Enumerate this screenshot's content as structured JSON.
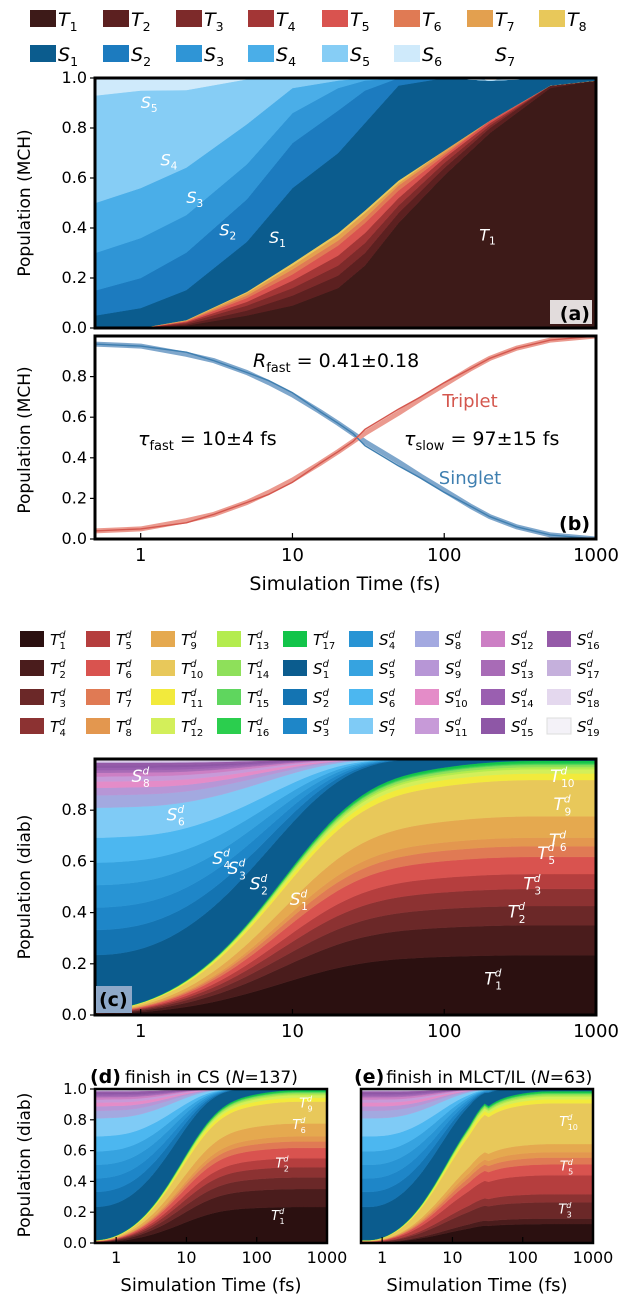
{
  "legend_top": {
    "triplets": [
      {
        "label": "T1",
        "base": "T",
        "sub": "1",
        "color": "#3d1a18"
      },
      {
        "label": "T2",
        "base": "T",
        "sub": "2",
        "color": "#5c2020"
      },
      {
        "label": "T3",
        "base": "T",
        "sub": "3",
        "color": "#7d2a2a"
      },
      {
        "label": "T4",
        "base": "T",
        "sub": "4",
        "color": "#a33636"
      },
      {
        "label": "T5",
        "base": "T",
        "sub": "5",
        "color": "#d9534f"
      },
      {
        "label": "T6",
        "base": "T",
        "sub": "6",
        "color": "#e07a54"
      },
      {
        "label": "T7",
        "base": "T",
        "sub": "7",
        "color": "#e3a04f"
      },
      {
        "label": "T8",
        "base": "T",
        "sub": "8",
        "color": "#e8c85a"
      }
    ],
    "singlets": [
      {
        "label": "S1",
        "base": "S",
        "sub": "1",
        "color": "#0b5c8e"
      },
      {
        "label": "S2",
        "base": "S",
        "sub": "2",
        "color": "#1c7bbf"
      },
      {
        "label": "S3",
        "base": "S",
        "sub": "3",
        "color": "#2f95d6"
      },
      {
        "label": "S4",
        "base": "S",
        "sub": "4",
        "color": "#4aaee8"
      },
      {
        "label": "S5",
        "base": "S",
        "sub": "5",
        "color": "#86cdf5"
      },
      {
        "label": "S6",
        "base": "S",
        "sub": "6",
        "color": "#cfeafb"
      },
      {
        "label": "S7",
        "base": "S",
        "sub": "7",
        "color": null
      }
    ]
  },
  "legend_diab": {
    "columns": [
      [
        {
          "base": "T",
          "sub": "1",
          "color": "#2b1010"
        },
        {
          "base": "T",
          "sub": "2",
          "color": "#4a1c1c"
        },
        {
          "base": "T",
          "sub": "3",
          "color": "#6b2828"
        },
        {
          "base": "T",
          "sub": "4",
          "color": "#8c3232"
        }
      ],
      [
        {
          "base": "T",
          "sub": "5",
          "color": "#b53e3e"
        },
        {
          "base": "T",
          "sub": "6",
          "color": "#d9534f"
        },
        {
          "base": "T",
          "sub": "7",
          "color": "#e07a54"
        },
        {
          "base": "T",
          "sub": "8",
          "color": "#e3974f"
        }
      ],
      [
        {
          "base": "T",
          "sub": "9",
          "color": "#e5a94f"
        },
        {
          "base": "T",
          "sub": "10",
          "color": "#e8c85a"
        },
        {
          "base": "T",
          "sub": "11",
          "color": "#f2ea3c"
        },
        {
          "base": "T",
          "sub": "12",
          "color": "#d3ef5a"
        }
      ],
      [
        {
          "base": "T",
          "sub": "13",
          "color": "#b4ec4e"
        },
        {
          "base": "T",
          "sub": "14",
          "color": "#8ee05a"
        },
        {
          "base": "T",
          "sub": "15",
          "color": "#5fd65e"
        },
        {
          "base": "T",
          "sub": "16",
          "color": "#2bce4e"
        }
      ],
      [
        {
          "base": "T",
          "sub": "17",
          "color": "#12c44a"
        },
        {
          "base": "S",
          "sub": "1",
          "color": "#0b5c8e"
        },
        {
          "base": "S",
          "sub": "2",
          "color": "#1474b2"
        },
        {
          "base": "S",
          "sub": "3",
          "color": "#1e86c8"
        }
      ],
      [
        {
          "base": "S",
          "sub": "4",
          "color": "#2894d4"
        },
        {
          "base": "S",
          "sub": "5",
          "color": "#36a3e0"
        },
        {
          "base": "S",
          "sub": "6",
          "color": "#4cb7f0"
        },
        {
          "base": "S",
          "sub": "7",
          "color": "#7fcbf6"
        }
      ],
      [
        {
          "base": "S",
          "sub": "8",
          "color": "#a3a9e0"
        },
        {
          "base": "S",
          "sub": "9",
          "color": "#b796d6"
        },
        {
          "base": "S",
          "sub": "10",
          "color": "#e48cc8"
        },
        {
          "base": "S",
          "sub": "11",
          "color": "#c79ad8"
        }
      ],
      [
        {
          "base": "S",
          "sub": "12",
          "color": "#cc7fc4"
        },
        {
          "base": "S",
          "sub": "13",
          "color": "#a86bb6"
        },
        {
          "base": "S",
          "sub": "14",
          "color": "#9a5fb0"
        },
        {
          "base": "S",
          "sub": "15",
          "color": "#8e57a6"
        }
      ],
      [
        {
          "base": "S",
          "sub": "16",
          "color": "#955aa8"
        },
        {
          "base": "S",
          "sub": "17",
          "color": "#c5b0dc"
        },
        {
          "base": "S",
          "sub": "18",
          "color": "#e4d8ee"
        },
        {
          "base": "S",
          "sub": "19",
          "color": "#f4f2f8"
        }
      ]
    ]
  },
  "common": {
    "x_ticks": [
      "1",
      "10",
      "100",
      "1000"
    ],
    "xlabel": "Simulation Time (fs)",
    "y_ticks_full": [
      "0.0",
      "0.2",
      "0.4",
      "0.6",
      "0.8",
      "1.0"
    ],
    "y_ticks_b": [
      "0.0",
      "0.2",
      "0.4",
      "0.6",
      "0.8"
    ],
    "y_ticks_c": [
      "0.0",
      "0.2",
      "0.4",
      "0.6",
      "0.8"
    ]
  },
  "chart_data": [
    {
      "id": "a",
      "type": "area",
      "panel_label": "(a)",
      "ylabel": "Population (MCH)",
      "xlim": [
        0.5,
        1000
      ],
      "ylim": [
        0,
        1
      ],
      "x_scale": "log",
      "x": [
        0.5,
        1,
        2,
        5,
        10,
        20,
        30,
        50,
        100,
        200,
        500,
        1000
      ],
      "series": [
        {
          "name": "T1",
          "values": [
            0,
            0,
            0.01,
            0.05,
            0.09,
            0.16,
            0.25,
            0.42,
            0.61,
            0.78,
            0.96,
            0.99
          ]
        },
        {
          "name": "T2",
          "values": [
            0,
            0,
            0.005,
            0.02,
            0.04,
            0.05,
            0.05,
            0.04,
            0.03,
            0.02,
            0.01,
            0
          ]
        },
        {
          "name": "T3",
          "values": [
            0,
            0,
            0.005,
            0.02,
            0.03,
            0.04,
            0.04,
            0.03,
            0.02,
            0.01,
            0,
            0
          ]
        },
        {
          "name": "T4",
          "values": [
            0,
            0,
            0.004,
            0.015,
            0.03,
            0.04,
            0.04,
            0.03,
            0.02,
            0.01,
            0,
            0
          ]
        },
        {
          "name": "T5",
          "values": [
            0,
            0,
            0.003,
            0.015,
            0.025,
            0.04,
            0.04,
            0.03,
            0.01,
            0.01,
            0,
            0
          ]
        },
        {
          "name": "T6",
          "values": [
            0,
            0,
            0.002,
            0.01,
            0.02,
            0.02,
            0.02,
            0.02,
            0.01,
            0,
            0,
            0
          ]
        },
        {
          "name": "T7",
          "values": [
            0,
            0,
            0.002,
            0.01,
            0.015,
            0.02,
            0.02,
            0.01,
            0.01,
            0,
            0,
            0
          ]
        },
        {
          "name": "T8",
          "values": [
            0,
            0,
            0.001,
            0.005,
            0.01,
            0.01,
            0.01,
            0.01,
            0,
            0,
            0,
            0
          ]
        },
        {
          "name": "S1",
          "values": [
            0.05,
            0.08,
            0.12,
            0.2,
            0.3,
            0.32,
            0.35,
            0.38,
            0.29,
            0.16,
            0.03,
            0.01
          ]
        },
        {
          "name": "S2",
          "values": [
            0.1,
            0.12,
            0.15,
            0.17,
            0.18,
            0.17,
            0.13,
            0.03,
            0,
            0,
            0,
            0
          ]
        },
        {
          "name": "S3",
          "values": [
            0.15,
            0.16,
            0.15,
            0.14,
            0.12,
            0.09,
            0.04,
            0,
            0,
            0,
            0,
            0
          ]
        },
        {
          "name": "S4",
          "values": [
            0.2,
            0.2,
            0.19,
            0.16,
            0.1,
            0.03,
            0.01,
            0,
            0,
            0,
            0,
            0
          ]
        },
        {
          "name": "S5",
          "values": [
            0.43,
            0.39,
            0.31,
            0.18,
            0.04,
            0.01,
            0,
            0,
            0,
            0,
            0,
            0
          ]
        },
        {
          "name": "S6",
          "values": [
            0.07,
            0.05,
            0.04,
            0.03,
            0.02,
            0.01,
            0,
            0,
            0,
            0,
            0,
            0
          ]
        }
      ],
      "annotations": [
        {
          "base": "S",
          "sub": "5",
          "x": 1.0,
          "y": 0.88
        },
        {
          "base": "S",
          "sub": "4",
          "x": 1.35,
          "y": 0.65
        },
        {
          "base": "S",
          "sub": "3",
          "x": 2.0,
          "y": 0.5
        },
        {
          "base": "S",
          "sub": "2",
          "x": 3.3,
          "y": 0.37
        },
        {
          "base": "S",
          "sub": "1",
          "x": 7.0,
          "y": 0.34
        },
        {
          "base": "T",
          "sub": "1",
          "x": 170,
          "y": 0.35
        }
      ]
    },
    {
      "id": "b",
      "type": "line",
      "panel_label": "(b)",
      "ylabel": "Population (MCH)",
      "xlim": [
        0.5,
        1000
      ],
      "ylim": [
        0,
        1
      ],
      "x_scale": "log",
      "x": [
        0.5,
        1,
        2,
        3,
        5,
        7,
        10,
        15,
        20,
        25,
        30,
        50,
        70,
        100,
        150,
        200,
        300,
        500,
        1000
      ],
      "series": [
        {
          "name": "Singlet",
          "color": "#3f7fb0",
          "values": [
            0.96,
            0.95,
            0.92,
            0.88,
            0.82,
            0.78,
            0.72,
            0.63,
            0.57,
            0.52,
            0.46,
            0.36,
            0.3,
            0.23,
            0.16,
            0.11,
            0.06,
            0.02,
            0.0
          ]
        },
        {
          "name": "Triplet",
          "color": "#d4574e",
          "values": [
            0.04,
            0.05,
            0.08,
            0.12,
            0.18,
            0.22,
            0.28,
            0.37,
            0.43,
            0.48,
            0.54,
            0.64,
            0.7,
            0.77,
            0.84,
            0.89,
            0.94,
            0.98,
            1.0
          ]
        },
        {
          "name": "Singlet fit",
          "color": "#7fa7cc",
          "values": [
            0.96,
            0.95,
            0.91,
            0.88,
            0.82,
            0.77,
            0.71,
            0.63,
            0.57,
            0.52,
            0.48,
            0.38,
            0.31,
            0.24,
            0.16,
            0.11,
            0.06,
            0.02,
            0.0
          ]
        },
        {
          "name": "Triplet fit",
          "color": "#eb9a8f",
          "values": [
            0.04,
            0.05,
            0.09,
            0.12,
            0.18,
            0.23,
            0.29,
            0.37,
            0.43,
            0.48,
            0.52,
            0.62,
            0.69,
            0.76,
            0.84,
            0.89,
            0.94,
            0.98,
            1.0
          ]
        }
      ],
      "labels": {
        "triplet": "Triplet",
        "singlet": "Singlet",
        "r_fast": "R",
        "r_fast_sub": "fast",
        "r_fast_val": " = 0.41±0.18",
        "tau_fast": "τ",
        "tau_fast_sub": "fast",
        "tau_fast_val": " = 10±4 fs",
        "tau_slow": "τ",
        "tau_slow_sub": "slow",
        "tau_slow_val": " = 97±15 fs"
      }
    },
    {
      "id": "c",
      "type": "area",
      "panel_label": "(c)",
      "ylabel": "Population (diab)",
      "xlim": [
        0.5,
        1000
      ],
      "ylim": [
        0,
        1
      ],
      "x_scale": "log",
      "x": [
        0.5,
        1,
        2,
        5,
        10,
        20,
        30,
        50,
        100,
        200,
        500,
        1000
      ],
      "annotations": [
        {
          "base": "S",
          "sub": "8",
          "x": 1.0,
          "y": 0.91
        },
        {
          "base": "S",
          "sub": "6",
          "x": 1.7,
          "y": 0.76
        },
        {
          "base": "S",
          "sub": "4",
          "x": 3.4,
          "y": 0.59
        },
        {
          "base": "S",
          "sub": "3",
          "x": 4.3,
          "y": 0.55
        },
        {
          "base": "S",
          "sub": "2",
          "x": 6.0,
          "y": 0.49
        },
        {
          "base": "S",
          "sub": "1",
          "x": 11.0,
          "y": 0.43
        },
        {
          "base": "T",
          "sub": "10",
          "x": 600,
          "y": 0.91
        },
        {
          "base": "T",
          "sub": "9",
          "x": 600,
          "y": 0.8
        },
        {
          "base": "T",
          "sub": "6",
          "x": 560,
          "y": 0.66
        },
        {
          "base": "T",
          "sub": "5",
          "x": 470,
          "y": 0.61
        },
        {
          "base": "T",
          "sub": "3",
          "x": 380,
          "y": 0.49
        },
        {
          "base": "T",
          "sub": "2",
          "x": 300,
          "y": 0.38
        },
        {
          "base": "T",
          "sub": "1",
          "x": 210,
          "y": 0.12
        }
      ]
    },
    {
      "id": "d",
      "type": "area",
      "panel_label": "(d)",
      "title": "finish in CS",
      "n_label": "N",
      "n_value": "=137",
      "ylabel": "Population (diab)",
      "xlim": [
        0.5,
        1000
      ],
      "ylim": [
        0,
        1
      ],
      "x_scale": "log",
      "annotations": [
        {
          "base": "T",
          "sub": "9",
          "x": 500,
          "y": 0.88
        },
        {
          "base": "T",
          "sub": "6",
          "x": 400,
          "y": 0.74
        },
        {
          "base": "T",
          "sub": "2",
          "x": 230,
          "y": 0.49
        },
        {
          "base": "T",
          "sub": "1",
          "x": 200,
          "y": 0.15
        }
      ]
    },
    {
      "id": "e",
      "type": "area",
      "panel_label": "(e)",
      "title": "finish in MLCT/IL",
      "n_label": "N",
      "n_value": "=63",
      "ylabel": "",
      "xlim": [
        0.5,
        1000
      ],
      "ylim": [
        0,
        1
      ],
      "x_scale": "log",
      "annotations": [
        {
          "base": "T",
          "sub": "10",
          "x": 450,
          "y": 0.76
        },
        {
          "base": "T",
          "sub": "5",
          "x": 420,
          "y": 0.47
        },
        {
          "base": "T",
          "sub": "3",
          "x": 400,
          "y": 0.19
        }
      ]
    }
  ]
}
